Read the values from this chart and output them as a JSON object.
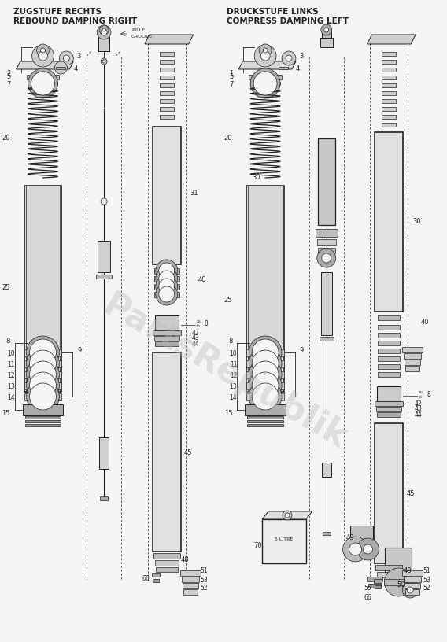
{
  "title_left_line1": "ZUGSTUFE RECHTS",
  "title_left_line2": "REBOUND DAMPING RIGHT",
  "title_right_line1": "DRUCKSTUFE LINKS",
  "title_right_line2": "COMPRESS DAMPING LEFT",
  "bg_color": "#f5f5f5",
  "fg_color": "#222222",
  "watermark": "PartsRepublik",
  "watermark_color": "#bbbbbb"
}
